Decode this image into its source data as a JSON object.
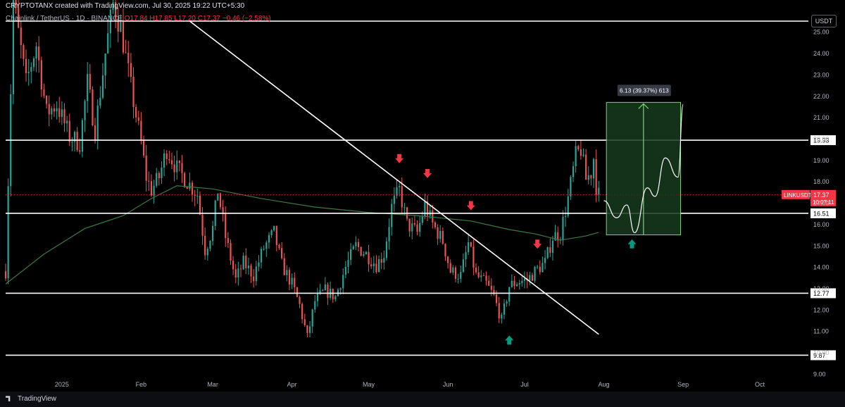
{
  "header": {
    "author_line": "CRYPTOTANX created with TradingView.com, Jul 30, 2025 19:22 UTC+5:30",
    "symbol_line": "Chainlink / TetherUS · 1D · BINANCE",
    "ohlc": "O17.84 H17.85 L17.20 C17.37 −0.46 (−2.58%)"
  },
  "currency": "USDT",
  "footer": {
    "brand": "TradingView"
  },
  "colors": {
    "up": "#26a69a",
    "down": "#ef5350",
    "ma": "#3d7a45",
    "level": "#ffffff",
    "projection_fill": "#173a1f",
    "projection_border": "#7fd37a",
    "arrow_down": "#f23645",
    "arrow_up": "#089981",
    "price_badge": "#f23645"
  },
  "chart_data": {
    "type": "candlestick",
    "x_axis": {
      "start": "2024-12-10",
      "end": "2025-10-20",
      "ticks": [
        {
          "date": "2025-01-01",
          "label": "2025"
        },
        {
          "date": "2025-02-01",
          "label": "Feb"
        },
        {
          "date": "2025-03-01",
          "label": "Mar"
        },
        {
          "date": "2025-04-01",
          "label": "Apr"
        },
        {
          "date": "2025-05-01",
          "label": "May"
        },
        {
          "date": "2025-06-01",
          "label": "Jun"
        },
        {
          "date": "2025-07-01",
          "label": "Jul"
        },
        {
          "date": "2025-08-01",
          "label": "Aug"
        },
        {
          "date": "2025-09-01",
          "label": "Sep"
        },
        {
          "date": "2025-10-01",
          "label": "Oct"
        }
      ]
    },
    "y_axis": {
      "range": [
        8.7,
        25.5
      ],
      "ticks": [
        9.0,
        10.0,
        11.0,
        12.0,
        13.0,
        14.0,
        15.0,
        16.0,
        17.0,
        18.0,
        19.0,
        20.0,
        21.0,
        22.0,
        23.0,
        24.0,
        25.0
      ]
    },
    "price_path": [
      [
        "2024-12-10",
        13.8
      ],
      [
        "2024-12-13",
        26.5
      ],
      [
        "2024-12-18",
        22.6
      ],
      [
        "2024-12-22",
        24.4
      ],
      [
        "2024-12-26",
        21.2
      ],
      [
        "2024-12-30",
        21.6
      ],
      [
        "2025-01-04",
        20.1
      ],
      [
        "2025-01-08",
        19.8
      ],
      [
        "2025-01-11",
        22.6
      ],
      [
        "2025-01-14",
        20.4
      ],
      [
        "2025-01-18",
        24.0
      ],
      [
        "2025-01-21",
        26.3
      ],
      [
        "2025-01-24",
        25.2
      ],
      [
        "2025-01-28",
        22.4
      ],
      [
        "2025-02-01",
        19.8
      ],
      [
        "2025-02-03",
        18.2
      ],
      [
        "2025-02-05",
        17.6
      ],
      [
        "2025-02-08",
        18.2
      ],
      [
        "2025-02-11",
        19.5
      ],
      [
        "2025-02-15",
        18.6
      ],
      [
        "2025-02-19",
        18.0
      ],
      [
        "2025-02-23",
        17.4
      ],
      [
        "2025-02-26",
        14.8
      ],
      [
        "2025-03-01",
        15.8
      ],
      [
        "2025-03-03",
        17.6
      ],
      [
        "2025-03-06",
        15.4
      ],
      [
        "2025-03-10",
        13.4
      ],
      [
        "2025-03-13",
        14.2
      ],
      [
        "2025-03-17",
        13.6
      ],
      [
        "2025-03-21",
        14.9
      ],
      [
        "2025-03-25",
        15.6
      ],
      [
        "2025-03-28",
        14.1
      ],
      [
        "2025-04-01",
        13.2
      ],
      [
        "2025-04-04",
        12.2
      ],
      [
        "2025-04-07",
        10.7
      ],
      [
        "2025-04-10",
        12.4
      ],
      [
        "2025-04-14",
        12.9
      ],
      [
        "2025-04-18",
        12.6
      ],
      [
        "2025-04-22",
        14.0
      ],
      [
        "2025-04-26",
        15.0
      ],
      [
        "2025-04-30",
        14.6
      ],
      [
        "2025-05-04",
        14.1
      ],
      [
        "2025-05-07",
        14.6
      ],
      [
        "2025-05-10",
        16.8
      ],
      [
        "2025-05-13",
        17.6
      ],
      [
        "2025-05-16",
        16.0
      ],
      [
        "2025-05-20",
        15.6
      ],
      [
        "2025-05-23",
        16.9
      ],
      [
        "2025-05-26",
        16.0
      ],
      [
        "2025-05-30",
        15.2
      ],
      [
        "2025-06-02",
        13.8
      ],
      [
        "2025-06-06",
        13.6
      ],
      [
        "2025-06-09",
        15.1
      ],
      [
        "2025-06-12",
        13.6
      ],
      [
        "2025-06-16",
        13.2
      ],
      [
        "2025-06-19",
        12.6
      ],
      [
        "2025-06-22",
        11.5
      ],
      [
        "2025-06-25",
        13.1
      ],
      [
        "2025-06-28",
        13.3
      ],
      [
        "2025-07-02",
        13.4
      ],
      [
        "2025-07-06",
        13.9
      ],
      [
        "2025-07-09",
        14.2
      ],
      [
        "2025-07-12",
        15.4
      ],
      [
        "2025-07-15",
        15.6
      ],
      [
        "2025-07-18",
        17.2
      ],
      [
        "2025-07-21",
        19.2
      ],
      [
        "2025-07-23",
        19.5
      ],
      [
        "2025-07-25",
        18.1
      ],
      [
        "2025-07-27",
        18.4
      ],
      [
        "2025-07-28",
        19.1
      ],
      [
        "2025-07-29",
        17.8
      ],
      [
        "2025-07-30",
        17.37
      ]
    ],
    "moving_average": [
      [
        "2024-12-10",
        13.2
      ],
      [
        "2024-12-25",
        14.6
      ],
      [
        "2025-01-10",
        15.8
      ],
      [
        "2025-01-25",
        16.4
      ],
      [
        "2025-02-05",
        17.2
      ],
      [
        "2025-02-15",
        17.8
      ],
      [
        "2025-03-01",
        17.65
      ],
      [
        "2025-03-20",
        17.2
      ],
      [
        "2025-04-10",
        16.8
      ],
      [
        "2025-05-01",
        16.55
      ],
      [
        "2025-05-20",
        16.4
      ],
      [
        "2025-06-10",
        16.15
      ],
      [
        "2025-06-25",
        15.75
      ],
      [
        "2025-07-05",
        15.55
      ],
      [
        "2025-07-15",
        15.25
      ],
      [
        "2025-07-25",
        15.45
      ],
      [
        "2025-07-30",
        15.62
      ]
    ],
    "horizontal_levels": [
      {
        "price": 25.5,
        "label": ""
      },
      {
        "price": 19.93,
        "label": "19.93"
      },
      {
        "price": 16.51,
        "label": "16.51"
      },
      {
        "price": 12.77,
        "label": "12.77"
      },
      {
        "price": 9.87,
        "label": "9.87"
      }
    ],
    "current_price": {
      "price": 17.37,
      "symbol": "LINKUSDT",
      "label": "17.37",
      "countdown": "10:07:11"
    },
    "trendline": {
      "from": [
        "2025-02-20",
        25.5
      ],
      "to": [
        "2025-07-30",
        10.85
      ]
    },
    "projection_box": {
      "from_date": "2025-08-02",
      "to_date": "2025-08-31",
      "low": 15.5,
      "high": 21.7,
      "label": "6.13 (39.37%) 613"
    },
    "projection_path": [
      [
        "2025-08-01",
        17.1
      ],
      [
        "2025-08-06",
        16.3
      ],
      [
        "2025-08-10",
        16.9
      ],
      [
        "2025-08-13",
        15.6
      ],
      [
        "2025-08-18",
        17.7
      ],
      [
        "2025-08-21",
        17.3
      ],
      [
        "2025-08-25",
        19.1
      ],
      [
        "2025-08-30",
        18.2
      ],
      [
        "2025-09-01",
        21.6
      ]
    ],
    "signals": [
      {
        "type": "sell",
        "date": "2025-05-13",
        "price": 19.05
      },
      {
        "type": "sell",
        "date": "2025-05-24",
        "price": 18.35
      },
      {
        "type": "sell",
        "date": "2025-06-10",
        "price": 16.85
      },
      {
        "type": "sell",
        "date": "2025-07-06",
        "price": 15.05
      },
      {
        "type": "buy",
        "date": "2025-06-25",
        "price": 10.6
      },
      {
        "type": "buy",
        "date": "2025-08-12",
        "price": 15.1
      }
    ]
  }
}
